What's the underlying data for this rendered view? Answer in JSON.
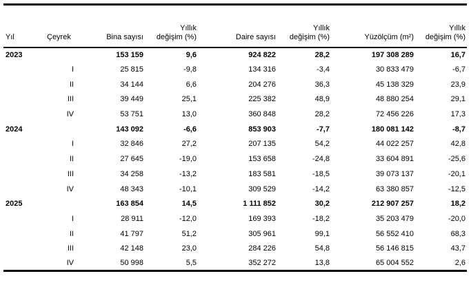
{
  "chart_data": {
    "type": "table",
    "columns": [
      "Yıl",
      "Çeyrek",
      "Bina sayısı",
      "Yıllık\ndeğişim (%)",
      "Daire sayısı",
      "Yıllık\ndeğişim (%)",
      "Yüzölçüm (m²)",
      "Yıllık\ndeğişim (%)"
    ],
    "rows": [
      {
        "year": "2023",
        "quarter": "",
        "bold": true,
        "values": [
          "153 159",
          "9,6",
          "924 822",
          "28,2",
          "197 308 289",
          "16,7"
        ]
      },
      {
        "year": "",
        "quarter": "I",
        "bold": false,
        "values": [
          "25 815",
          "-9,8",
          "134 316",
          "-3,4",
          "30 833 479",
          "-6,7"
        ]
      },
      {
        "year": "",
        "quarter": "II",
        "bold": false,
        "values": [
          "34 144",
          "6,6",
          "204 276",
          "36,3",
          "45 138 329",
          "23,9"
        ]
      },
      {
        "year": "",
        "quarter": "III",
        "bold": false,
        "values": [
          "39 449",
          "25,1",
          "225 382",
          "48,9",
          "48 880 254",
          "29,1"
        ]
      },
      {
        "year": "",
        "quarter": "IV",
        "bold": false,
        "values": [
          "53 751",
          "13,0",
          "360 848",
          "28,2",
          "72 456 226",
          "17,3"
        ]
      },
      {
        "year": "2024",
        "quarter": "",
        "bold": true,
        "values": [
          "143 092",
          "-6,6",
          "853 903",
          "-7,7",
          "180 081 142",
          "-8,7"
        ]
      },
      {
        "year": "",
        "quarter": "I",
        "bold": false,
        "values": [
          "32 846",
          "27,2",
          "207 135",
          "54,2",
          "44 022 257",
          "42,8"
        ]
      },
      {
        "year": "",
        "quarter": "II",
        "bold": false,
        "values": [
          "27 645",
          "-19,0",
          "153 658",
          "-24,8",
          "33 604 891",
          "-25,6"
        ]
      },
      {
        "year": "",
        "quarter": "III",
        "bold": false,
        "values": [
          "34 258",
          "-13,2",
          "183 581",
          "-18,5",
          "39 073 137",
          "-20,1"
        ]
      },
      {
        "year": "",
        "quarter": "IV",
        "bold": false,
        "values": [
          "48 343",
          "-10,1",
          "309 529",
          "-14,2",
          "63 380 857",
          "-12,5"
        ]
      },
      {
        "year": "2025",
        "quarter": "",
        "bold": true,
        "values": [
          "163 854",
          "14,5",
          "1 111 852",
          "30,2",
          "212 907 257",
          "18,2"
        ]
      },
      {
        "year": "",
        "quarter": "I",
        "bold": false,
        "values": [
          "28 911",
          "-12,0",
          "169 393",
          "-18,2",
          "35 203 479",
          "-20,0"
        ]
      },
      {
        "year": "",
        "quarter": "II",
        "bold": false,
        "values": [
          "41 797",
          "51,2",
          "305 961",
          "99,1",
          "56 552 410",
          "68,3"
        ]
      },
      {
        "year": "",
        "quarter": "III",
        "bold": false,
        "values": [
          "42 148",
          "23,0",
          "284 226",
          "54,8",
          "56 146 815",
          "43,7"
        ]
      },
      {
        "year": "",
        "quarter": "IV",
        "bold": false,
        "values": [
          "50 998",
          "5,5",
          "352 272",
          "13,8",
          "65 004 552",
          "2,6"
        ]
      }
    ]
  }
}
